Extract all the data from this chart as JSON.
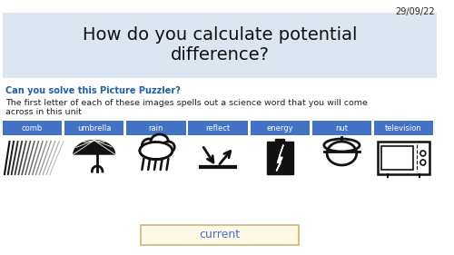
{
  "date": "29/09/22",
  "title": "How do you calculate potential\ndifference?",
  "title_bg": "#dce6f1",
  "subtitle": "Can you solve this Picture Puzzler?",
  "subtitle_color": "#1f5fa6",
  "body_text": "The first letter of each of these images spells out a science word that you will come\nacross in this unit",
  "labels": [
    "comb",
    "umbrella",
    "rain",
    "reflect",
    "energy",
    "nut",
    "television"
  ],
  "label_bg": "#4472c4",
  "label_color": "#ffffff",
  "answer": "current",
  "answer_bg": "#fef9e7",
  "answer_color": "#4472c4",
  "answer_border": "#c8b87a",
  "bg_color": "#ffffff",
  "date_fontsize": 7,
  "title_fontsize": 14,
  "subtitle_fontsize": 7,
  "body_fontsize": 6.8,
  "label_fontsize": 6,
  "answer_fontsize": 9
}
